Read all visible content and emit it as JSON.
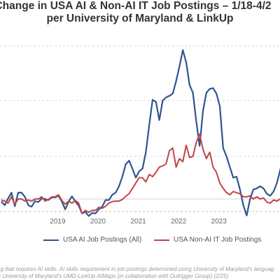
{
  "title_line1": "Change in USA AI & Non-AI IT Job Postings – 1/18-4/2",
  "title_line2": "per University of Maryland & LinkUp",
  "footnote_line1": "sting that requires AI skills. AI skills requirement in job postings determined using University of Maryland's languag",
  "footnote_line2": "rce: University of Maryland's UMD-LinkUp AIMaps (in collaboration with Outrigger Group) (2/25)",
  "colors": {
    "ai": "#2e5591",
    "nonai": "#c0454a",
    "grid": "#c8c8c8",
    "axis": "#bdbdbd"
  },
  "chart_data": {
    "type": "line",
    "x_tick_labels": [
      "2019",
      "2020",
      "2021",
      "2022",
      "2023"
    ],
    "grid": true,
    "legend_position": "bottom",
    "series": [
      {
        "name": "USA AI Job Postings (All)",
        "values": [
          -5,
          -12,
          1,
          12,
          -14,
          12,
          12,
          4,
          -12,
          -15,
          -4,
          -6,
          1,
          0,
          -2,
          3,
          3,
          6,
          -5,
          -20,
          -5,
          5,
          -5,
          -13,
          -28,
          -25,
          -33,
          -27,
          -28,
          -20,
          -15,
          -2,
          -2,
          8,
          12,
          24,
          42,
          65,
          72,
          57,
          40,
          52,
          57,
          86,
          125,
          162,
          158,
          132,
          160,
          168,
          172,
          178,
          210,
          248,
          290,
          258,
          200,
          180,
          130,
          95,
          145,
          180,
          190,
          192,
          178,
          152,
          92,
          80,
          60,
          40,
          42,
          18,
          -12,
          -32,
          0,
          18,
          20,
          24,
          20,
          10,
          6,
          14,
          30,
          55,
          80,
          65
        ]
      },
      {
        "name": "USA Non-AI IT Job Postings",
        "values": [
          -2,
          -4,
          -8,
          4,
          -10,
          0,
          0,
          -4,
          -2,
          -4,
          0,
          0,
          4,
          -4,
          -1,
          4,
          4,
          8,
          -3,
          -10,
          -4,
          -8,
          -3,
          -8,
          -28,
          -22,
          -26,
          -22,
          -22,
          -16,
          -18,
          -14,
          -8,
          -5,
          -4,
          -4,
          -1,
          5,
          10,
          20,
          30,
          40,
          40,
          32,
          46,
          42,
          50,
          60,
          62,
          66,
          88,
          92,
          60,
          76,
          70,
          96,
          78,
          80,
          100,
          112,
          90,
          76,
          86,
          60,
          50,
          30,
          20,
          12,
          8,
          14,
          12,
          10,
          4,
          4,
          6,
          0,
          4,
          0,
          2,
          -6,
          -8,
          -2,
          -4,
          0,
          0,
          -2
        ]
      }
    ]
  }
}
